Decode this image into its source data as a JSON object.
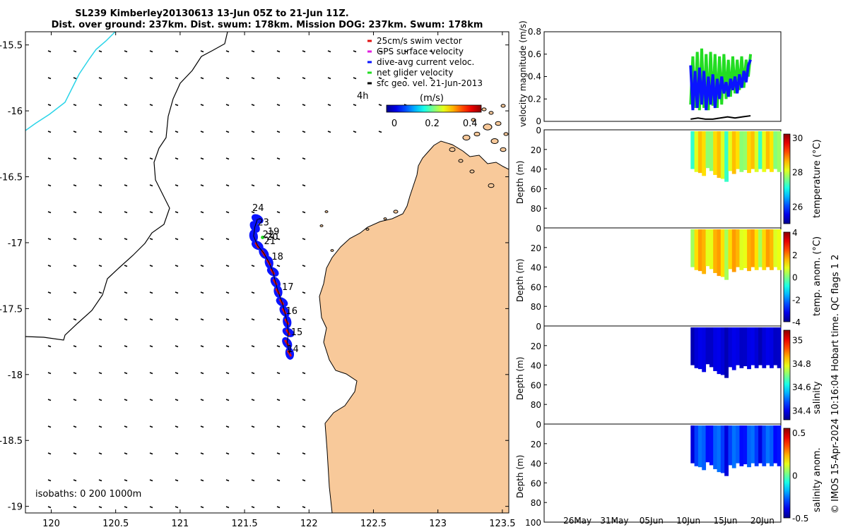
{
  "title": {
    "line1": "SL239 Kimberley20130613 13-Jun 05Z to 21-Jun 11Z.",
    "line2": "Dist. over ground: 237km. Dist. swum: 178km. Mission DOG: 237km. Swum: 178km"
  },
  "credit": "© IMOS 15-Apr-2024 10:16:04 Hobart time. QC flags 1  2",
  "colors": {
    "land": "#f8c99a",
    "track_blue": "#0a14ff",
    "swim_red": "#e01010",
    "ground_green": "#22dd22",
    "cyan_line": "#2ad4e8"
  },
  "chart_data": [
    {
      "type": "map",
      "name": "glider-track-map",
      "xlim": [
        119.8,
        123.55
      ],
      "ylim": [
        -19.05,
        -15.4
      ],
      "x_ticks": [
        120,
        120.5,
        121,
        121.5,
        122,
        122.5,
        123,
        123.5
      ],
      "x_tick_labels": [
        "120",
        "120.5",
        "121",
        "121.5",
        "122",
        "122.5",
        "123",
        "123.5"
      ],
      "y_ticks": [
        -15.5,
        -16,
        -16.5,
        -17,
        -17.5,
        -18,
        -18.5,
        -19
      ],
      "y_tick_labels": [
        "-15.5",
        "-16",
        "-16.5",
        "-17",
        "-17.5",
        "-18",
        "-18.5",
        "-19"
      ],
      "legend": [
        {
          "label": "25cm/s swim vector",
          "color": "#e01010"
        },
        {
          "label": "GPS surface velocity",
          "color": "#e020e0"
        },
        {
          "label": "dive-avg current veloc.",
          "color": "#0a14ff"
        },
        {
          "label": "net glider velocity",
          "color": "#22dd22"
        },
        {
          "label": "sfc geo. vel. 21-Jun-2013",
          "color": "#000000"
        }
      ],
      "scale_label": "4h",
      "colorbar": {
        "label": "(m/s)",
        "ticks": [
          0,
          0.2,
          0.4
        ],
        "tick_labels": [
          "0",
          "0.2",
          "0.4"
        ],
        "range": [
          0,
          0.5
        ]
      },
      "isobaths_label": "isobaths: 0   200  1000m",
      "track": [
        {
          "lon": 121.6,
          "lat": -16.82
        },
        {
          "lon": 121.58,
          "lat": -16.88
        },
        {
          "lon": 121.57,
          "lat": -16.95
        },
        {
          "lon": 121.6,
          "lat": -17.02
        },
        {
          "lon": 121.65,
          "lat": -17.08
        },
        {
          "lon": 121.69,
          "lat": -17.15
        },
        {
          "lon": 121.72,
          "lat": -17.22
        },
        {
          "lon": 121.74,
          "lat": -17.3
        },
        {
          "lon": 121.76,
          "lat": -17.37
        },
        {
          "lon": 121.79,
          "lat": -17.45
        },
        {
          "lon": 121.81,
          "lat": -17.52
        },
        {
          "lon": 121.83,
          "lat": -17.6
        },
        {
          "lon": 121.84,
          "lat": -17.68
        },
        {
          "lon": 121.83,
          "lat": -17.76
        },
        {
          "lon": 121.85,
          "lat": -17.84
        }
      ],
      "day_labels": [
        {
          "text": "24",
          "lon": 121.56,
          "lat": -16.76
        },
        {
          "text": "23",
          "lon": 121.6,
          "lat": -16.87
        },
        {
          "text": "19",
          "lon": 121.68,
          "lat": -16.94
        },
        {
          "text": "22",
          "lon": 121.64,
          "lat": -16.96
        },
        {
          "text": "20",
          "lon": 121.67,
          "lat": -16.98
        },
        {
          "text": "21",
          "lon": 121.65,
          "lat": -17.01
        },
        {
          "text": "18",
          "lon": 121.71,
          "lat": -17.13
        },
        {
          "text": "17",
          "lon": 121.79,
          "lat": -17.36
        },
        {
          "text": "16",
          "lon": 121.82,
          "lat": -17.54
        },
        {
          "text": "15",
          "lon": 121.86,
          "lat": -17.7
        },
        {
          "text": "14",
          "lon": 121.83,
          "lat": -17.83
        }
      ]
    },
    {
      "type": "line",
      "name": "velocity-magnitude",
      "ylabel": "velocity magnitude (m/s)",
      "ylim": [
        0,
        0.8
      ],
      "y_ticks": [
        0,
        0.2,
        0.4,
        0.6,
        0.8
      ],
      "y_tick_labels": [
        "0",
        "0.2",
        "0.4",
        "0.6",
        "0.8"
      ],
      "series": [
        {
          "name": "net glider velocity",
          "color": "#22dd22",
          "x": [
            13.3,
            13.6,
            13.9,
            14.2,
            14.5,
            14.8,
            15.1,
            15.4,
            15.7,
            16.0,
            16.3,
            16.6,
            16.9,
            17.2,
            17.5,
            17.8,
            18.1,
            18.4,
            18.7,
            19.0,
            19.3,
            19.6,
            19.9,
            20.2,
            20.5,
            20.8,
            21.1,
            21.4
          ],
          "y": [
            0.15,
            0.58,
            0.12,
            0.62,
            0.1,
            0.65,
            0.12,
            0.6,
            0.1,
            0.62,
            0.14,
            0.6,
            0.12,
            0.58,
            0.15,
            0.6,
            0.2,
            0.55,
            0.22,
            0.58,
            0.25,
            0.55,
            0.28,
            0.58,
            0.3,
            0.55,
            0.4,
            0.6
          ]
        },
        {
          "name": "dive-avg current veloc.",
          "color": "#0a14ff",
          "x": [
            13.3,
            13.6,
            13.9,
            14.2,
            14.5,
            14.8,
            15.1,
            15.4,
            15.7,
            16.0,
            16.3,
            16.6,
            16.9,
            17.2,
            17.5,
            17.8,
            18.1,
            18.4,
            18.7,
            19.0,
            19.3,
            19.6,
            19.9,
            20.2,
            20.5,
            20.8,
            21.1,
            21.4
          ],
          "y": [
            0.5,
            0.1,
            0.45,
            0.12,
            0.48,
            0.15,
            0.45,
            0.1,
            0.4,
            0.15,
            0.42,
            0.12,
            0.38,
            0.2,
            0.4,
            0.25,
            0.35,
            0.22,
            0.38,
            0.28,
            0.4,
            0.25,
            0.42,
            0.3,
            0.45,
            0.35,
            0.5,
            0.55
          ]
        },
        {
          "name": "sfc geo. vel.",
          "color": "#000000",
          "x": [
            13.3,
            14.3,
            15.3,
            16.3,
            17.3,
            18.3,
            19.3,
            20.3,
            21.4
          ],
          "y": [
            0.02,
            0.03,
            0.02,
            0.02,
            0.03,
            0.04,
            0.03,
            0.04,
            0.05
          ]
        }
      ]
    },
    {
      "type": "heatmap",
      "name": "temperature-section",
      "ylabel": "Depth (m)",
      "ylim": [
        0,
        100
      ],
      "y_ticks": [
        0,
        20,
        40,
        60,
        80
      ],
      "y_tick_labels": [
        "0",
        "20",
        "40",
        "60",
        "80"
      ],
      "colorbar_label": "temperature (°C)",
      "colorbar_range": [
        25,
        30.2
      ],
      "colorbar_ticks": [
        26,
        28,
        30
      ],
      "colorbar_tick_labels": [
        "26",
        "28",
        "30"
      ],
      "value_range": [
        26.6,
        28.6
      ],
      "bottom_depth": [
        40,
        44,
        39,
        46,
        50,
        42,
        40,
        41,
        40,
        40,
        40,
        40
      ]
    },
    {
      "type": "heatmap",
      "name": "temperature-anomaly-section",
      "ylabel": "Depth (m)",
      "ylim": [
        0,
        100
      ],
      "y_ticks": [
        0,
        20,
        40,
        60,
        80
      ],
      "y_tick_labels": [
        "0",
        "20",
        "40",
        "60",
        "80"
      ],
      "colorbar_label": "temp. anom. (°C)",
      "colorbar_range": [
        -4,
        4
      ],
      "colorbar_ticks": [
        -4,
        -2,
        0,
        2,
        4
      ],
      "colorbar_tick_labels": [
        "-4",
        "-2",
        "0",
        "2",
        "4"
      ],
      "value_range": [
        -0.4,
        1.8
      ],
      "bottom_depth": [
        40,
        44,
        39,
        46,
        50,
        42,
        40,
        41,
        40,
        40,
        40,
        40
      ]
    },
    {
      "type": "heatmap",
      "name": "salinity-section",
      "ylabel": "Depth (m)",
      "ylim": [
        0,
        100
      ],
      "y_ticks": [
        0,
        20,
        40,
        60,
        80
      ],
      "y_tick_labels": [
        "0",
        "20",
        "40",
        "60",
        "80"
      ],
      "colorbar_label": "salinity",
      "colorbar_range": [
        34.32,
        35.08
      ],
      "colorbar_ticks": [
        34.4,
        34.6,
        34.8,
        35
      ],
      "colorbar_tick_labels": [
        "34.4",
        "34.6",
        "34.8",
        "35"
      ],
      "value_range": [
        34.33,
        34.4
      ],
      "bottom_depth": [
        40,
        44,
        39,
        46,
        50,
        42,
        40,
        41,
        40,
        40,
        40,
        40
      ]
    },
    {
      "type": "heatmap",
      "name": "salinity-anomaly-section",
      "ylabel": "Depth (m)",
      "ylim": [
        0,
        100
      ],
      "y_ticks": [
        0,
        20,
        40,
        60,
        80,
        100
      ],
      "y_tick_labels": [
        "0",
        "20",
        "40",
        "60",
        "80",
        "100"
      ],
      "colorbar_label": "salinity anom.",
      "colorbar_range": [
        -0.5,
        0.55
      ],
      "colorbar_ticks": [
        -0.5,
        0,
        0.5
      ],
      "colorbar_tick_labels": [
        "-0.5",
        "0",
        "0.5"
      ],
      "value_range": [
        -0.48,
        -0.25
      ],
      "bottom_depth": [
        40,
        44,
        39,
        46,
        50,
        42,
        40,
        41,
        40,
        40,
        40,
        40
      ],
      "x_ticks": [
        26,
        31,
        36,
        41,
        46,
        51
      ],
      "x_tick_labels": [
        "26May",
        "31May",
        "05Jun",
        "10Jun",
        "15Jun",
        "20Jun"
      ],
      "xlim": [
        21.5,
        53.5
      ]
    }
  ]
}
